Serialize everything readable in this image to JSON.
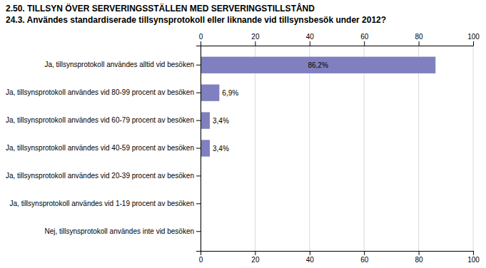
{
  "chart_data": {
    "type": "bar",
    "orientation": "horizontal",
    "title": "2.50. TILLSYN ÖVER SERVERINGSSTÄLLEN MED SERVERINGSTILLSTÅND",
    "subtitle": "24.3. Användes standardiserade tillsynsprotokoll eller liknande vid tillsynsbesök under 2012?",
    "categories": [
      "Ja, tillsynsprotokoll användes alltid vid besöken",
      "Ja, tillsynsprotokoll användes vid 80-99 procent av besöken",
      "Ja, tillsynsprotokoll användes vid 60-79 procent av besöken",
      "Ja, tillsynsprotokoll användes vid 40-59 procent av besöken",
      "Ja, tillsynsprotokoll användes vid 20-39 procent av besöken",
      "Ja, tillsynsprotokoll användes vid 1-19 procent av besöken",
      "Nej, tillsynsprotokoll användes inte vid besöken"
    ],
    "values": [
      86.2,
      6.9,
      3.4,
      3.4,
      0.0,
      0.0,
      0.0
    ],
    "value_labels": [
      "86,2%",
      "6,9%",
      "3,4%",
      "3,4%",
      null,
      null,
      null
    ],
    "data_labels": true,
    "color": "#8080c0",
    "xlim": [
      0,
      100
    ],
    "xticks": [
      0,
      20,
      40,
      60,
      80,
      100
    ],
    "grid": true
  }
}
